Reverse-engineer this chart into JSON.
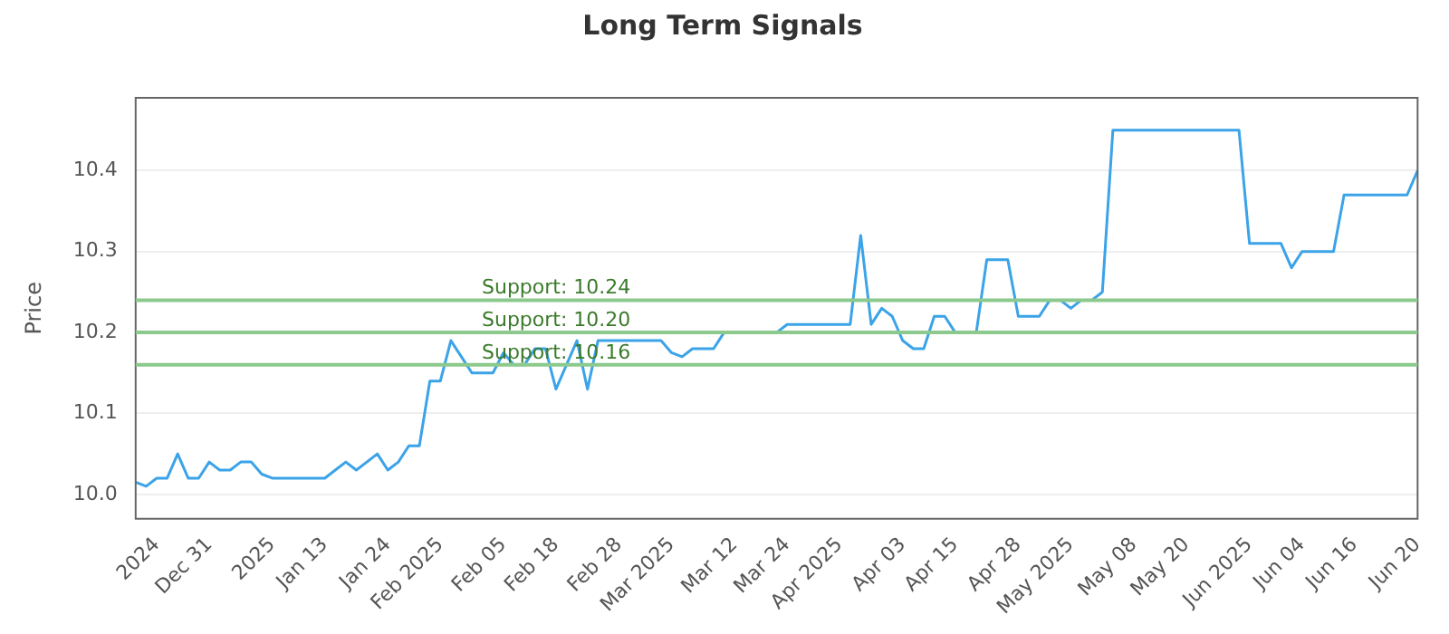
{
  "chart_data": {
    "type": "line",
    "title": "Long Term Signals",
    "ylabel": "Price",
    "categories": [
      null,
      null,
      "2024",
      null,
      null,
      null,
      null,
      "Dec 31",
      null,
      null,
      null,
      null,
      null,
      "2025",
      null,
      null,
      null,
      null,
      "Jan 13",
      null,
      null,
      null,
      null,
      null,
      "Jan 24",
      null,
      null,
      null,
      null,
      "Feb 2025",
      null,
      null,
      null,
      null,
      null,
      "Feb 05",
      null,
      null,
      null,
      null,
      "Feb 18",
      null,
      null,
      null,
      null,
      null,
      "Feb 28",
      null,
      null,
      null,
      null,
      "Mar 2025",
      null,
      null,
      null,
      null,
      null,
      "Mar 12",
      null,
      null,
      null,
      null,
      "Mar 24",
      null,
      null,
      null,
      null,
      "Apr 2025",
      null,
      null,
      null,
      null,
      null,
      "Apr 03",
      null,
      null,
      null,
      null,
      "Apr 15",
      null,
      null,
      null,
      null,
      null,
      "Apr 28",
      null,
      null,
      null,
      null,
      "May 2025",
      null,
      null,
      null,
      null,
      null,
      "May 08",
      null,
      null,
      null,
      null,
      "May 20",
      null,
      null,
      null,
      null,
      null,
      "Jun 2025",
      null,
      null,
      null,
      null,
      "Jun 04",
      null,
      null,
      null,
      null,
      "Jun 16",
      null,
      null,
      null,
      null,
      null,
      "Jun 20"
    ],
    "series": [
      {
        "color": "#3ba3e8",
        "values": [
          10.015,
          10.01,
          10.02,
          10.02,
          10.05,
          10.02,
          10.02,
          10.04,
          10.03,
          10.03,
          10.04,
          10.04,
          10.025,
          10.02,
          10.02,
          10.02,
          10.02,
          10.02,
          10.02,
          10.03,
          10.04,
          10.03,
          10.04,
          10.05,
          10.03,
          10.04,
          10.06,
          10.06,
          10.14,
          10.14,
          10.19,
          10.17,
          10.15,
          10.15,
          10.15,
          10.175,
          10.16,
          10.16,
          10.18,
          10.18,
          10.13,
          10.16,
          10.19,
          10.13,
          10.19,
          10.19,
          10.19,
          10.19,
          10.19,
          10.19,
          10.19,
          10.175,
          10.17,
          10.18,
          10.18,
          10.18,
          10.2,
          10.2,
          10.2,
          10.2,
          10.2,
          10.2,
          10.21,
          10.21,
          10.21,
          10.21,
          10.21,
          10.21,
          10.21,
          10.32,
          10.21,
          10.23,
          10.22,
          10.19,
          10.18,
          10.18,
          10.22,
          10.22,
          10.2,
          10.2,
          10.2,
          10.29,
          10.29,
          10.29,
          10.22,
          10.22,
          10.22,
          10.24,
          10.24,
          10.23,
          10.24,
          10.24,
          10.25,
          10.45,
          10.45,
          10.45,
          10.45,
          10.45,
          10.45,
          10.45,
          10.45,
          10.45,
          10.45,
          10.45,
          10.45,
          10.45,
          10.31,
          10.31,
          10.31,
          10.31,
          10.28,
          10.3,
          10.3,
          10.3,
          10.3,
          10.37,
          10.37,
          10.37,
          10.37,
          10.37,
          10.37,
          10.37,
          10.4
        ]
      }
    ],
    "ylim": [
      9.97,
      10.49
    ],
    "yticks": [
      {
        "value": 10,
        "label": "10.0"
      },
      {
        "value": 10.1,
        "label": "10.1"
      },
      {
        "value": 10.2,
        "label": "10.2"
      },
      {
        "value": 10.3,
        "label": "10.3"
      },
      {
        "value": 10.4,
        "label": "10.4"
      }
    ],
    "ref_lines": [
      {
        "axis": "y",
        "value": 10.24,
        "label": "Support: 10.24",
        "color": "#8cc98c"
      },
      {
        "axis": "y",
        "value": 10.2,
        "label": "Support: 10.20",
        "color": "#8cc98c"
      },
      {
        "axis": "y",
        "value": 10.16,
        "label": "Support: 10.16",
        "color": "#8cc98c"
      }
    ],
    "grid": "y",
    "legend": false,
    "marker": "none",
    "line_style": "solid"
  }
}
